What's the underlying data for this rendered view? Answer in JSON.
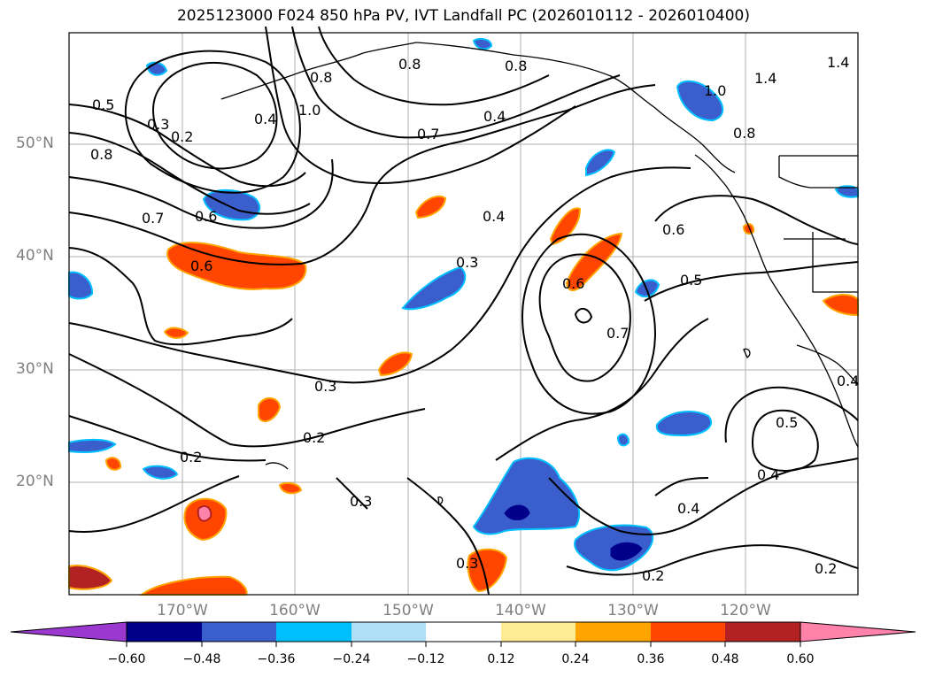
{
  "title": "2025123000 F024 850 hPa PV, IVT Landfall PC (2026010112 - 2026010400)",
  "map": {
    "lat_labels": [
      "50°N",
      "40°N",
      "30°N",
      "20°N"
    ],
    "lon_labels": [
      "170°W",
      "160°W",
      "150°W",
      "140°W",
      "130°W",
      "120°W"
    ],
    "contour_labels": [
      "0.5",
      "0.3",
      "0.2",
      "0.8",
      "0.4",
      "1.0",
      "0.8",
      "0.7",
      "0.4",
      "0.8",
      "0.6",
      "1.0",
      "1.4",
      "1.4",
      "0.8",
      "0.7",
      "0.6",
      "0.8",
      "0.4",
      "0.3",
      "0.6",
      "0.7",
      "0.6",
      "0.5",
      "0.3",
      "0.2",
      "0.2",
      "0.3",
      "0.5",
      "0.4",
      "0.4",
      "0.3",
      "0.2",
      "0.2",
      "0.4"
    ]
  },
  "colorbar": {
    "ticks": [
      "−0.60",
      "−0.48",
      "−0.36",
      "−0.24",
      "−0.12",
      "0.12",
      "0.24",
      "0.36",
      "0.48",
      "0.60"
    ],
    "colors": [
      "#9a38d0",
      "#00008b",
      "#3a5fcd",
      "#00bfff",
      "#b0e0f8",
      "#ffffff",
      "#ffeb94",
      "#ffa500",
      "#ff4500",
      "#b22222",
      "#ff82ab"
    ]
  }
}
